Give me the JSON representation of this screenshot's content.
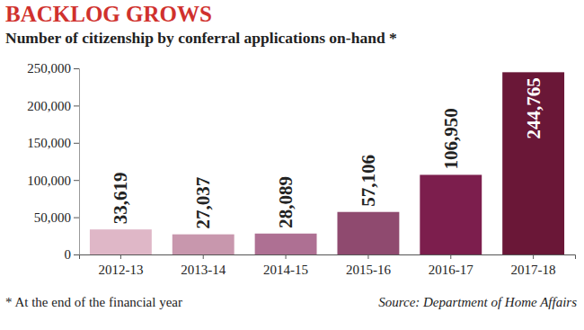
{
  "chart_data": {
    "type": "bar",
    "title": "BACKLOG GROWS",
    "subtitle": "Number of citizenship by conferral applications on-hand *",
    "categories": [
      "2012-13",
      "2013-14",
      "2014-15",
      "2015-16",
      "2016-17",
      "2017-18"
    ],
    "values": [
      33619,
      27037,
      28089,
      57106,
      106950,
      244765
    ],
    "value_labels": [
      "33,619",
      "27,037",
      "28,089",
      "57,106",
      "106,950",
      "244,765"
    ],
    "colors": [
      "#dfb7c7",
      "#c897ad",
      "#ae7093",
      "#8f4a6f",
      "#7c1e4d",
      "#6a1737"
    ],
    "data_labels": true,
    "grid": false,
    "ylim": [
      0,
      250000
    ],
    "yticks": [
      0,
      {
        "value": 50000,
        "label": "50,000"
      },
      {
        "value": 100000,
        "label": "100,000"
      },
      {
        "value": 150000,
        "label": "150,000"
      },
      {
        "value": 200000,
        "label": "200,000"
      },
      {
        "value": 250000,
        "label": "250,000"
      }
    ],
    "footnote": "* At the end of the financial year",
    "source": "Source: Department of Home Affairs"
  }
}
